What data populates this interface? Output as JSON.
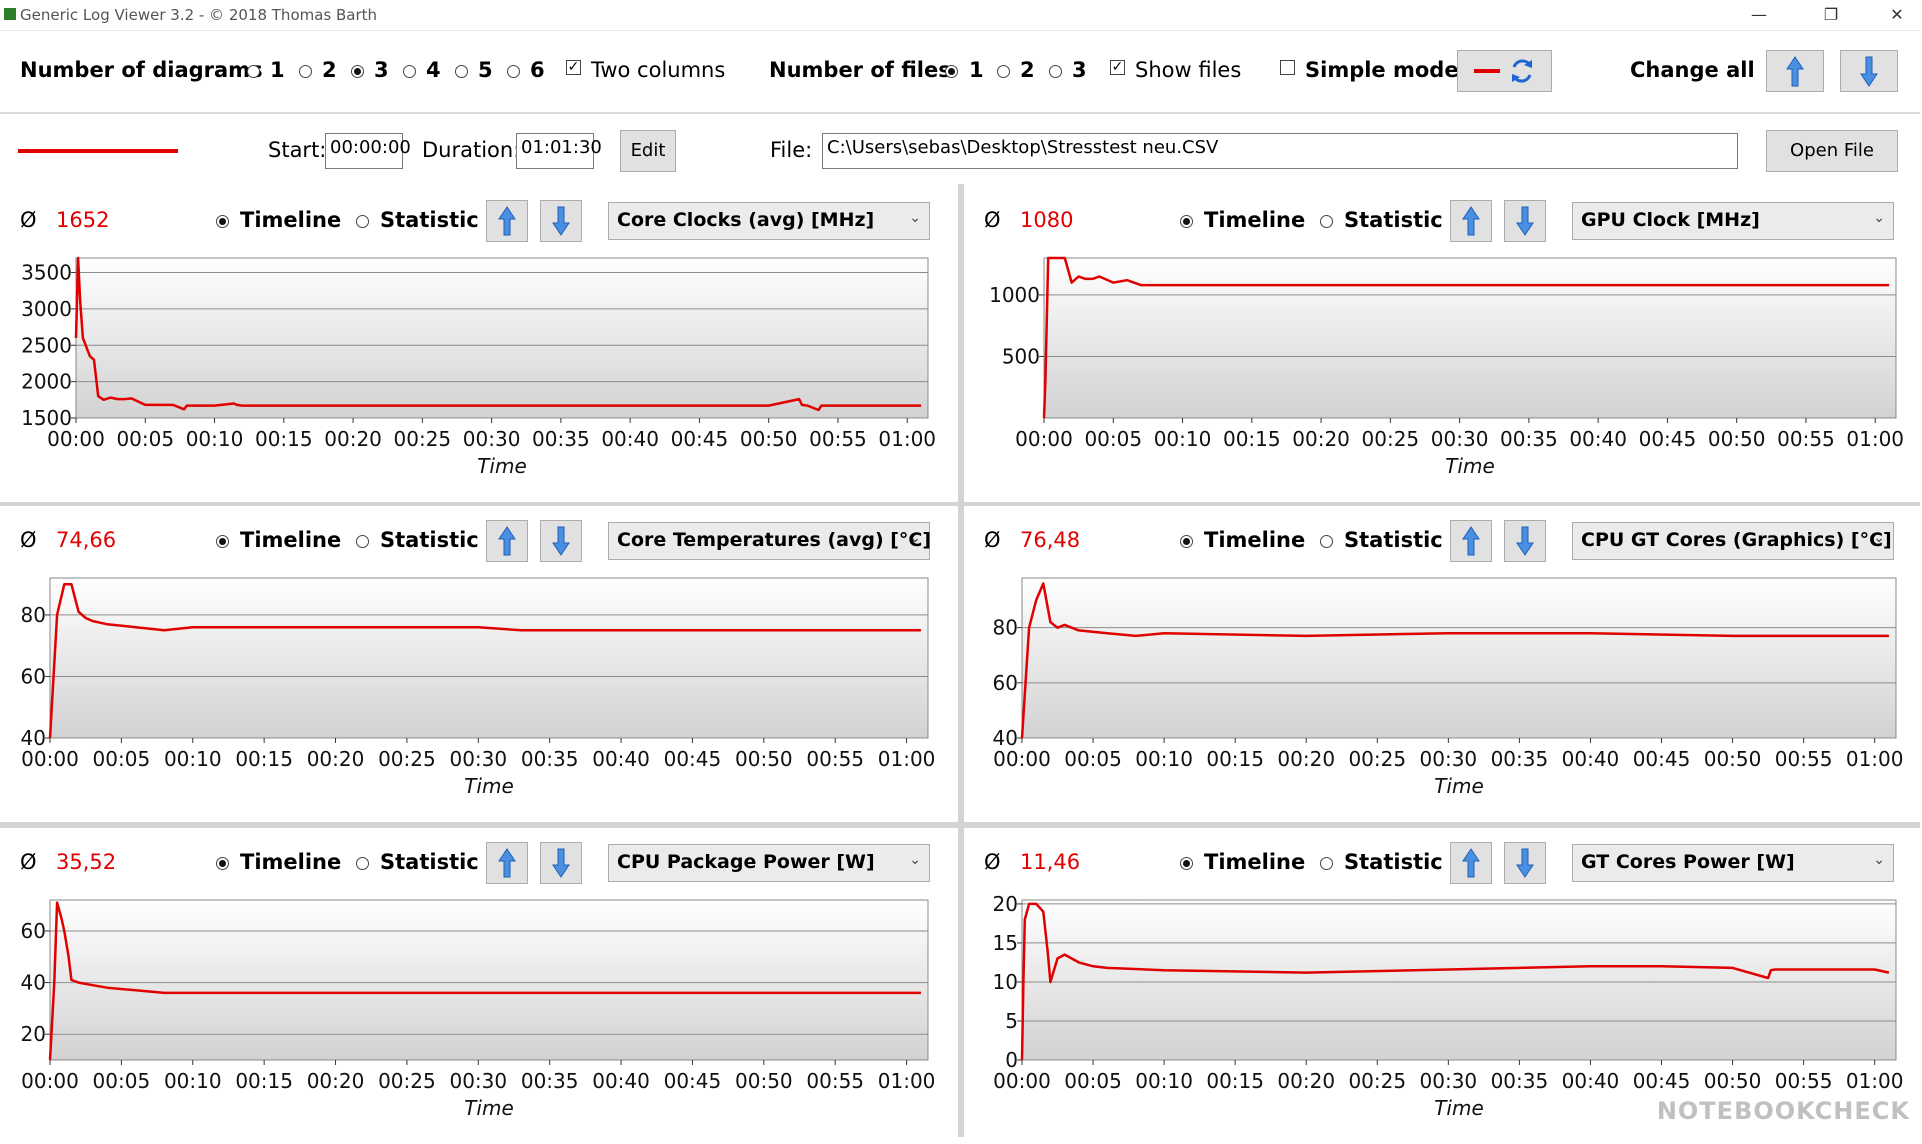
{
  "window": {
    "title": "Generic Log Viewer 3.2 - © 2018 Thomas Barth",
    "buttons": [
      "—",
      "❐",
      "✕"
    ]
  },
  "toolbar": {
    "num_diagrams_label": "Number of diagrams",
    "diagram_options": [
      "1",
      "2",
      "3",
      "4",
      "5",
      "6"
    ],
    "diagram_selected": "3",
    "two_columns_label": "Two columns",
    "two_columns_checked": true,
    "num_files_label": "Number of files",
    "file_options": [
      "1",
      "2",
      "3"
    ],
    "file_selected": "1",
    "show_files_label": "Show files",
    "show_files_checked": true,
    "simple_mode_label": "Simple mode",
    "simple_mode_checked": false,
    "change_all_label": "Change all"
  },
  "file_row": {
    "line_color": "#e00000",
    "start_label": "Start:",
    "start_value": "00:00:00",
    "duration_label": "Duration:",
    "duration_value": "01:01:30",
    "edit_label": "Edit",
    "file_label": "File:",
    "file_path": "C:\\Users\\sebas\\Desktop\\Stresstest neu.CSV",
    "open_file_label": "Open File"
  },
  "common": {
    "avg_symbol": "Ø",
    "timeline_label": "Timeline",
    "statistic_label": "Statistic",
    "xlabel": "Time",
    "line_color": "#e00000"
  },
  "watermark": "NOTEBOOKCHECK",
  "panels": [
    {
      "avg": "1652",
      "sensor": "Core Clocks (avg) [MHz]"
    },
    {
      "avg": "1080",
      "sensor": "GPU Clock [MHz]"
    },
    {
      "avg": "74,66",
      "sensor": "Core Temperatures (avg) [°C]"
    },
    {
      "avg": "76,48",
      "sensor": "CPU GT Cores (Graphics) [°C]"
    },
    {
      "avg": "35,52",
      "sensor": "CPU Package Power [W]"
    },
    {
      "avg": "11,46",
      "sensor": "GT Cores Power [W]"
    }
  ],
  "chart_data": [
    {
      "type": "line",
      "title": "",
      "xlabel": "Time",
      "ylabel": "",
      "xlim": [
        0,
        61.5
      ],
      "ylim": [
        1500,
        3700
      ],
      "yticks": [
        1500,
        2000,
        2500,
        3000,
        3500
      ],
      "xticks": [
        "00:00",
        "00:05",
        "00:10",
        "00:15",
        "00:20",
        "00:25",
        "00:30",
        "00:35",
        "00:40",
        "00:45",
        "00:50",
        "00:55",
        "01:00"
      ],
      "grid": true,
      "series": [
        {
          "x": [
            0,
            0.15,
            0.3,
            0.5,
            0.7,
            1,
            1.3,
            1.6,
            2,
            2.5,
            3,
            3.5,
            4,
            5,
            7,
            7.8,
            8,
            10,
            11.4,
            11.6,
            12,
            20,
            30,
            40,
            50,
            52.2,
            52.4,
            52.8,
            53.6,
            53.8,
            55,
            61
          ],
          "y": [
            2600,
            3700,
            3100,
            2600,
            2500,
            2350,
            2300,
            1800,
            1750,
            1780,
            1760,
            1760,
            1770,
            1680,
            1680,
            1620,
            1670,
            1670,
            1700,
            1680,
            1670,
            1670,
            1670,
            1670,
            1670,
            1760,
            1680,
            1670,
            1610,
            1670,
            1670,
            1670
          ]
        }
      ]
    },
    {
      "type": "line",
      "title": "",
      "xlabel": "Time",
      "ylabel": "",
      "xlim": [
        0,
        61.5
      ],
      "ylim": [
        0,
        1300
      ],
      "yticks": [
        500,
        1000
      ],
      "xticks": [
        "00:00",
        "00:05",
        "00:10",
        "00:15",
        "00:20",
        "00:25",
        "00:30",
        "00:35",
        "00:40",
        "00:45",
        "00:50",
        "00:55",
        "01:00"
      ],
      "grid": true,
      "series": [
        {
          "x": [
            0,
            0.1,
            0.3,
            0.5,
            1,
            1.5,
            2,
            2.5,
            3,
            3.5,
            4,
            5,
            6,
            7,
            61
          ],
          "y": [
            0,
            300,
            1300,
            1300,
            1300,
            1300,
            1100,
            1150,
            1130,
            1130,
            1150,
            1100,
            1120,
            1080,
            1080
          ]
        }
      ]
    },
    {
      "type": "line",
      "title": "",
      "xlabel": "Time",
      "ylabel": "",
      "xlim": [
        0,
        61.5
      ],
      "ylim": [
        40,
        92
      ],
      "yticks": [
        40,
        60,
        80
      ],
      "xticks": [
        "00:00",
        "00:05",
        "00:10",
        "00:15",
        "00:20",
        "00:25",
        "00:30",
        "00:35",
        "00:40",
        "00:45",
        "00:50",
        "00:55",
        "01:00"
      ],
      "grid": true,
      "series": [
        {
          "x": [
            0,
            0.5,
            1,
            1.5,
            2,
            2.5,
            3,
            4,
            6,
            8,
            10,
            20,
            30,
            33,
            40,
            50,
            61
          ],
          "y": [
            40,
            80,
            90,
            90,
            81,
            79,
            78,
            77,
            76,
            75,
            76,
            76,
            76,
            75,
            75,
            75,
            75
          ]
        }
      ]
    },
    {
      "type": "line",
      "title": "",
      "xlabel": "Time",
      "ylabel": "",
      "xlim": [
        0,
        61.5
      ],
      "ylim": [
        40,
        98
      ],
      "yticks": [
        40,
        60,
        80
      ],
      "xticks": [
        "00:00",
        "00:05",
        "00:10",
        "00:15",
        "00:20",
        "00:25",
        "00:30",
        "00:35",
        "00:40",
        "00:45",
        "00:50",
        "00:55",
        "01:00"
      ],
      "grid": true,
      "series": [
        {
          "x": [
            0,
            0.5,
            1,
            1.5,
            2,
            2.5,
            3,
            4,
            6,
            8,
            10,
            20,
            30,
            40,
            50,
            61
          ],
          "y": [
            40,
            80,
            90,
            96,
            82,
            80,
            81,
            79,
            78,
            77,
            78,
            77,
            78,
            78,
            77,
            77
          ]
        }
      ]
    },
    {
      "type": "line",
      "title": "",
      "xlabel": "Time",
      "ylabel": "",
      "xlim": [
        0,
        61.5
      ],
      "ylim": [
        10,
        72
      ],
      "yticks": [
        20,
        40,
        60
      ],
      "xticks": [
        "00:00",
        "00:05",
        "00:10",
        "00:15",
        "00:20",
        "00:25",
        "00:30",
        "00:35",
        "00:40",
        "00:45",
        "00:50",
        "00:55",
        "01:00"
      ],
      "grid": true,
      "series": [
        {
          "x": [
            0,
            0.3,
            0.5,
            0.8,
            1,
            1.3,
            1.5,
            2,
            3,
            4,
            6,
            8,
            10,
            20,
            30,
            40,
            50,
            61
          ],
          "y": [
            10,
            40,
            71,
            65,
            60,
            50,
            41,
            40,
            39,
            38,
            37,
            36,
            36,
            36,
            36,
            36,
            36,
            36
          ]
        }
      ]
    },
    {
      "type": "line",
      "title": "",
      "xlabel": "Time",
      "ylabel": "",
      "xlim": [
        0,
        61.5
      ],
      "ylim": [
        0,
        20.5
      ],
      "yticks": [
        0,
        5,
        10,
        15,
        20
      ],
      "xticks": [
        "00:00",
        "00:05",
        "00:10",
        "00:15",
        "00:20",
        "00:25",
        "00:30",
        "00:35",
        "00:40",
        "00:45",
        "00:50",
        "00:55",
        "01:00"
      ],
      "grid": true,
      "series": [
        {
          "x": [
            0,
            0.1,
            0.2,
            0.5,
            1,
            1.5,
            1.8,
            2,
            2.5,
            3,
            4,
            5,
            6,
            10,
            20,
            30,
            40,
            45,
            50,
            52.5,
            52.7,
            53,
            60,
            61
          ],
          "y": [
            0,
            10,
            18,
            20,
            20,
            19,
            14,
            10,
            13,
            13.5,
            12.5,
            12,
            11.8,
            11.5,
            11.2,
            11.6,
            12,
            12,
            11.8,
            10.5,
            11.5,
            11.6,
            11.6,
            11.2
          ]
        }
      ]
    }
  ]
}
